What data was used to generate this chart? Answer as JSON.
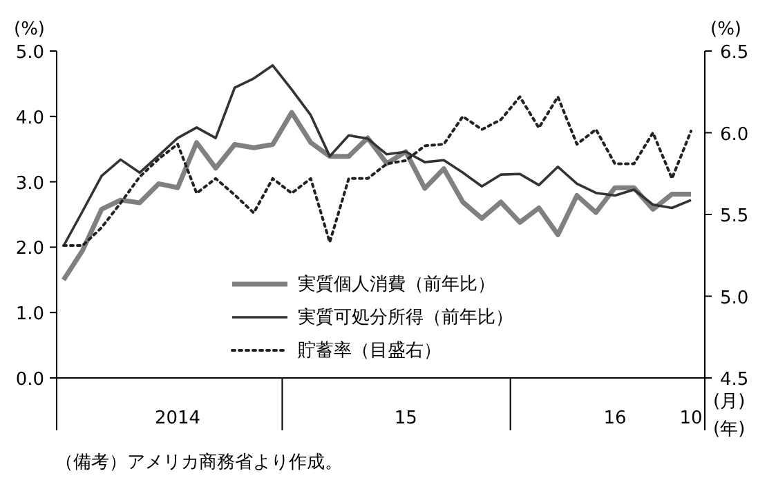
{
  "chart_data": {
    "type": "line",
    "ylabel": "(%)",
    "y2label": "(%)",
    "xlabel": "(月)\n(年)",
    "categories": [
      null,
      null,
      null,
      null,
      null,
      null,
      "2014",
      null,
      null,
      null,
      null,
      null,
      null,
      null,
      null,
      null,
      null,
      null,
      "15",
      null,
      null,
      null,
      null,
      null,
      null,
      null,
      null,
      null,
      null,
      "16",
      null,
      null,
      null,
      "10"
    ],
    "series": [
      {
        "name": "実質個人消費（前年比）",
        "color": "#808080",
        "line_style": "solid",
        "values": [
          1.5,
          1.95,
          2.58,
          2.72,
          2.68,
          2.97,
          2.91,
          3.6,
          3.21,
          3.57,
          3.52,
          3.57,
          4.06,
          3.6,
          3.39,
          3.39,
          3.67,
          3.28,
          3.46,
          2.9,
          3.2,
          2.69,
          2.44,
          2.69,
          2.38,
          2.6,
          2.19,
          2.79,
          2.53,
          2.91,
          2.91,
          2.58,
          2.81,
          2.81
        ]
      },
      {
        "name": "実質可処分所得（前年比）",
        "color": "#333333",
        "line_style": "solid",
        "values": [
          2.02,
          2.55,
          3.09,
          3.34,
          3.14,
          3.4,
          3.67,
          3.83,
          3.67,
          4.44,
          4.58,
          4.78,
          4.41,
          4.02,
          3.39,
          3.71,
          3.66,
          3.42,
          3.46,
          3.3,
          3.33,
          3.14,
          2.93,
          3.11,
          3.12,
          2.95,
          3.23,
          2.97,
          2.83,
          2.79,
          2.88,
          2.65,
          2.6,
          2.72
        ]
      },
      {
        "name": "貯蓄率（目盛右）",
        "color": "#222222",
        "line_style": "dotted",
        "axis": "y2",
        "values": [
          5.31,
          5.31,
          5.42,
          5.57,
          5.73,
          5.84,
          5.93,
          5.63,
          5.72,
          5.62,
          5.51,
          5.72,
          5.63,
          5.72,
          5.33,
          5.72,
          5.72,
          5.81,
          5.83,
          5.92,
          5.93,
          6.1,
          6.02,
          6.08,
          6.22,
          6.03,
          6.22,
          5.93,
          6.02,
          5.81,
          5.81,
          6.0,
          5.72,
          6.01
        ]
      }
    ],
    "ylim": [
      0,
      5
    ],
    "yticks": [
      {
        "value": 0,
        "label": "0.0"
      },
      {
        "value": 1,
        "label": "1.0"
      },
      {
        "value": 2,
        "label": "2.0"
      },
      {
        "value": 3,
        "label": "3.0"
      },
      {
        "value": 4,
        "label": "4.0"
      },
      {
        "value": 5,
        "label": "5.0"
      }
    ],
    "y2lim": [
      4.5,
      6.5
    ],
    "y2ticks": [
      {
        "value": 4.5,
        "label": "4.5"
      },
      {
        "value": 5,
        "label": "5.0"
      },
      {
        "value": 5.5,
        "label": "5.5"
      },
      {
        "value": 6,
        "label": "6.0"
      },
      {
        "value": 6.5,
        "label": "6.5"
      }
    ],
    "legend": "bottom",
    "annotations": [
      "（備考）アメリカ商務省より作成。"
    ]
  }
}
